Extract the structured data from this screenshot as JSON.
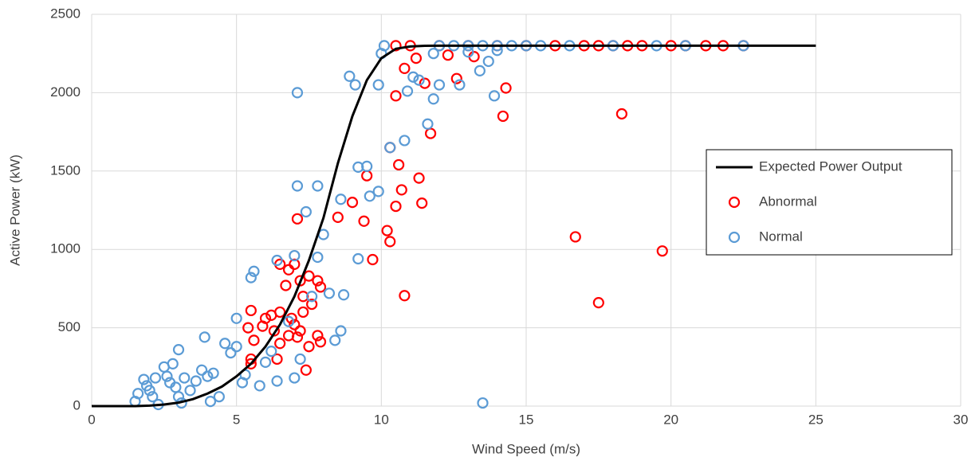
{
  "chart_data": {
    "type": "scatter",
    "x_label": "Wind Speed (m/s)",
    "y_label": "Active Power (kW)",
    "xlim": [
      0,
      30
    ],
    "xticks": [
      0,
      5,
      10,
      15,
      20,
      25,
      30
    ],
    "ylim": [
      0,
      2500
    ],
    "yticks": [
      0,
      500,
      1000,
      1500,
      2000,
      2500
    ],
    "grid": true,
    "legend": "right",
    "series": [
      {
        "name": "Expected Power Output",
        "color": "#000000",
        "style": "line",
        "x": [
          0,
          1,
          1.5,
          2,
          2.5,
          3,
          3.5,
          4,
          4.5,
          5,
          5.5,
          6,
          6.5,
          7,
          7.5,
          8,
          8.5,
          9,
          9.5,
          10,
          10.5,
          11,
          11.5,
          12,
          25
        ],
        "values": [
          0,
          0,
          0,
          3,
          10,
          22,
          45,
          80,
          125,
          190,
          270,
          380,
          520,
          700,
          930,
          1200,
          1550,
          1850,
          2080,
          2220,
          2280,
          2295,
          2299,
          2300,
          2300
        ]
      },
      {
        "name": "Abnormal",
        "color": "#ff0000",
        "style": "marker",
        "x": [
          10.5,
          11,
          12,
          13,
          14,
          15,
          16,
          17,
          17.5,
          18,
          18.5,
          19,
          20,
          20.5,
          21.2,
          21.8,
          22.5,
          16.7,
          17.5,
          19.7,
          18.3,
          14.2,
          14.3,
          12.6,
          11.7,
          11.3,
          11.4,
          10.8,
          10.5,
          10.6,
          10.7,
          10.3,
          10.2,
          10.3,
          10.5,
          10.8,
          9.7,
          9.5,
          9.4,
          8.5,
          9.0,
          7.1,
          7.0,
          6.5,
          6.7,
          6.8,
          7.2,
          7.5,
          7.8,
          7.9,
          7.3,
          7.6,
          6.5,
          6.2,
          6.0,
          5.9,
          5.5,
          5.4,
          5.6,
          5.5,
          5.5,
          6.3,
          6.5,
          6.8,
          7.0,
          7.2,
          7.5,
          7.4,
          6.9,
          7.1,
          7.8,
          7.3,
          6.4,
          7.9,
          11.5,
          12.3,
          13.2,
          11.2
        ],
        "values": [
          2300,
          2300,
          2300,
          2300,
          2300,
          2300,
          2300,
          2300,
          2300,
          2300,
          2300,
          2300,
          2300,
          2300,
          2300,
          2300,
          2300,
          1080,
          660,
          990,
          1865,
          1850,
          2030,
          2090,
          1740,
          1455,
          1295,
          2155,
          1980,
          1540,
          1380,
          1650,
          1120,
          1050,
          1275,
          705,
          935,
          1470,
          1180,
          1205,
          1300,
          1195,
          905,
          905,
          770,
          870,
          800,
          830,
          800,
          760,
          700,
          650,
          600,
          580,
          560,
          510,
          610,
          500,
          420,
          300,
          270,
          480,
          400,
          450,
          520,
          480,
          380,
          230,
          560,
          440,
          450,
          600,
          300,
          410,
          2060,
          2240,
          2230,
          2220
        ]
      },
      {
        "name": "Normal",
        "color": "#5b9bd5",
        "style": "marker",
        "x": [
          1.5,
          1.6,
          1.8,
          1.9,
          2.0,
          2.1,
          2.2,
          2.3,
          2.5,
          2.6,
          2.7,
          2.8,
          2.9,
          3.0,
          3.0,
          3.1,
          3.2,
          3.4,
          3.6,
          3.8,
          3.9,
          4.0,
          4.1,
          4.2,
          4.4,
          4.6,
          4.8,
          5.0,
          5.0,
          5.2,
          5.3,
          5.5,
          5.6,
          5.8,
          6.0,
          6.2,
          6.4,
          6.4,
          6.8,
          7.0,
          7.0,
          7.1,
          7.1,
          7.2,
          7.4,
          7.6,
          7.8,
          7.8,
          8.0,
          8.2,
          8.4,
          8.6,
          8.6,
          8.7,
          8.9,
          9.1,
          9.2,
          9.2,
          9.5,
          9.6,
          9.9,
          9.9,
          10.0,
          10.1,
          10.3,
          10.8,
          10.9,
          11.1,
          11.3,
          11.6,
          11.8,
          12.0,
          12.7,
          13.4,
          13.7,
          13.9,
          13.5,
          12.0,
          12.5,
          13,
          13.5,
          14,
          14.5,
          15,
          15.5,
          16.5,
          18.0,
          19.5,
          20.5,
          22.5,
          11.8,
          13.0,
          14.0
        ],
        "values": [
          30,
          80,
          170,
          130,
          100,
          60,
          180,
          10,
          250,
          190,
          150,
          270,
          120,
          360,
          60,
          20,
          180,
          100,
          160,
          230,
          440,
          190,
          30,
          210,
          60,
          400,
          340,
          380,
          560,
          150,
          200,
          820,
          860,
          130,
          280,
          350,
          930,
          160,
          540,
          960,
          180,
          1405,
          2000,
          300,
          1240,
          700,
          1405,
          950,
          1095,
          720,
          420,
          480,
          1320,
          710,
          2105,
          2050,
          1525,
          940,
          1530,
          1340,
          1370,
          2050,
          2250,
          2300,
          1650,
          1695,
          2010,
          2100,
          2080,
          1800,
          1960,
          2050,
          2050,
          2140,
          2200,
          1980,
          20,
          2300,
          2300,
          2300,
          2300,
          2300,
          2300,
          2300,
          2300,
          2300,
          2300,
          2300,
          2300,
          2300,
          2250,
          2260,
          2270
        ]
      }
    ]
  }
}
